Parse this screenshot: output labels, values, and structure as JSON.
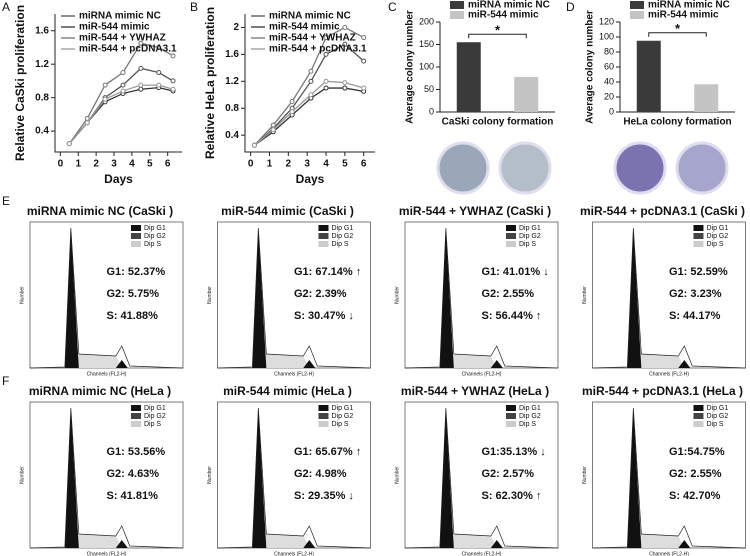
{
  "chart_data": [
    {
      "type": "line",
      "panel": "A",
      "y_label": "Relative CaSki proliferation",
      "x_label": "Days",
      "x": [
        0.5,
        1.5,
        2.5,
        3.5,
        4.5,
        5.5,
        6.3
      ],
      "xlim": [
        -0.3,
        6.8
      ],
      "xticks": [
        0,
        1,
        2,
        3,
        4,
        5,
        6
      ],
      "ylim": [
        0.15,
        1.8
      ],
      "yticks": [
        0.4,
        0.8,
        1.2,
        1.6
      ],
      "series": [
        {
          "name": "miRNA mimic NC",
          "color": "#555555",
          "values": [
            0.25,
            0.5,
            0.8,
            0.95,
            1.15,
            1.1,
            1.0
          ]
        },
        {
          "name": "miR-544 mimic",
          "color": "#333333",
          "values": [
            0.25,
            0.5,
            0.75,
            0.85,
            0.9,
            0.92,
            0.88
          ]
        },
        {
          "name": "miR-544 + YWHAZ",
          "color": "#777777",
          "values": [
            0.25,
            0.55,
            0.95,
            1.1,
            1.45,
            1.4,
            1.3
          ]
        },
        {
          "name": "miR-544 + pcDNA3.1",
          "color": "#999999",
          "values": [
            0.25,
            0.5,
            0.78,
            0.88,
            0.95,
            0.95,
            0.9
          ]
        }
      ]
    },
    {
      "type": "line",
      "panel": "B",
      "y_label": "Relative HeLa proliferation",
      "x_label": "Days",
      "x": [
        0.2,
        1.2,
        2.2,
        3.2,
        4,
        5,
        6
      ],
      "xlim": [
        -0.3,
        6.6
      ],
      "xticks": [
        0,
        1,
        2,
        3,
        4,
        5,
        6
      ],
      "ylim": [
        0.15,
        2.2
      ],
      "yticks": [
        0.4,
        0.8,
        1.2,
        1.6,
        2.0
      ],
      "series": [
        {
          "name": "miRNA mimic NC",
          "color": "#555555",
          "values": [
            0.25,
            0.5,
            0.8,
            1.2,
            1.6,
            1.75,
            1.5
          ]
        },
        {
          "name": "miR-544 mimic",
          "color": "#333333",
          "values": [
            0.25,
            0.45,
            0.7,
            0.95,
            1.1,
            1.1,
            1.05
          ]
        },
        {
          "name": "miR-544 + YWHAZ",
          "color": "#777777",
          "values": [
            0.25,
            0.55,
            0.9,
            1.35,
            1.85,
            2.0,
            1.85
          ]
        },
        {
          "name": "miR-544 + pcDNA3.1",
          "color": "#999999",
          "values": [
            0.25,
            0.48,
            0.75,
            1.0,
            1.2,
            1.18,
            1.1
          ]
        }
      ]
    },
    {
      "type": "bar",
      "panel": "C",
      "y_label": "Average colony number",
      "x_label": "CaSki colony formation",
      "annotation": "*",
      "ylim": [
        0,
        200
      ],
      "yticks": [
        0,
        50,
        100,
        150,
        200
      ],
      "series": [
        {
          "name": "miRNA mimic NC",
          "color": "#3a3a3a",
          "values": [
            155
          ]
        },
        {
          "name": "miR-544 mimic",
          "color": "#c4c4c4",
          "values": [
            78
          ]
        }
      ]
    },
    {
      "type": "bar",
      "panel": "D",
      "y_label": "Average colony number",
      "x_label": "HeLa colony formation",
      "annotation": "*",
      "ylim": [
        0,
        120
      ],
      "yticks": [
        0,
        20,
        40,
        60,
        80,
        100,
        120
      ],
      "series": [
        {
          "name": "miRNA mimic NC",
          "color": "#3a3a3a",
          "values": [
            95
          ]
        },
        {
          "name": "miR-544 mimic",
          "color": "#c4c4c4",
          "values": [
            37
          ]
        }
      ]
    }
  ],
  "cell_cycle": {
    "x_label": "Channels (FL2-H)",
    "y_label": "Number",
    "legend": [
      "Dip G1",
      "Dip G2",
      "Dip S"
    ],
    "rows": [
      {
        "panel": "E",
        "plots": [
          {
            "title": "miRNA mimic NC (CaSki )",
            "g1": "G1: 52.37%",
            "g2": "G2: 5.75%",
            "s": "S: 41.88%"
          },
          {
            "title": "miR-544 mimic (CaSki )",
            "g1": "G1: 67.14% ↑",
            "g2": "G2: 2.39%",
            "s": "S: 30.47% ↓"
          },
          {
            "title": "miR-544 + YWHAZ (CaSki )",
            "g1": "G1: 41.01% ↓",
            "g2": "G2: 2.55%",
            "s": "S: 56.44% ↑"
          },
          {
            "title": "miR-544 + pcDNA3.1 (CaSki )",
            "g1": "G1: 52.59%",
            "g2": "G2: 3.23%",
            "s": "S: 44.17%"
          }
        ]
      },
      {
        "panel": "F",
        "plots": [
          {
            "title": "miRNA mimic NC (HeLa )",
            "g1": "G1: 53.56%",
            "g2": "G2: 4.63%",
            "s": "S: 41.81%"
          },
          {
            "title": "miR-544 mimic (HeLa )",
            "g1": "G1: 65.67% ↑",
            "g2": "G2: 4.98%",
            "s": "S: 29.35% ↓"
          },
          {
            "title": "miR-544 + YWHAZ (HeLa )",
            "g1": "G1:35.13% ↓",
            "g2": "G2: 2.57%",
            "s": "S: 62.30% ↑"
          },
          {
            "title": "miR-544 + pcDNA3.1 (HeLa )",
            "g1": "G1:54.75%",
            "g2": "G2: 2.55%",
            "s": "S: 42.70%"
          }
        ]
      }
    ]
  }
}
